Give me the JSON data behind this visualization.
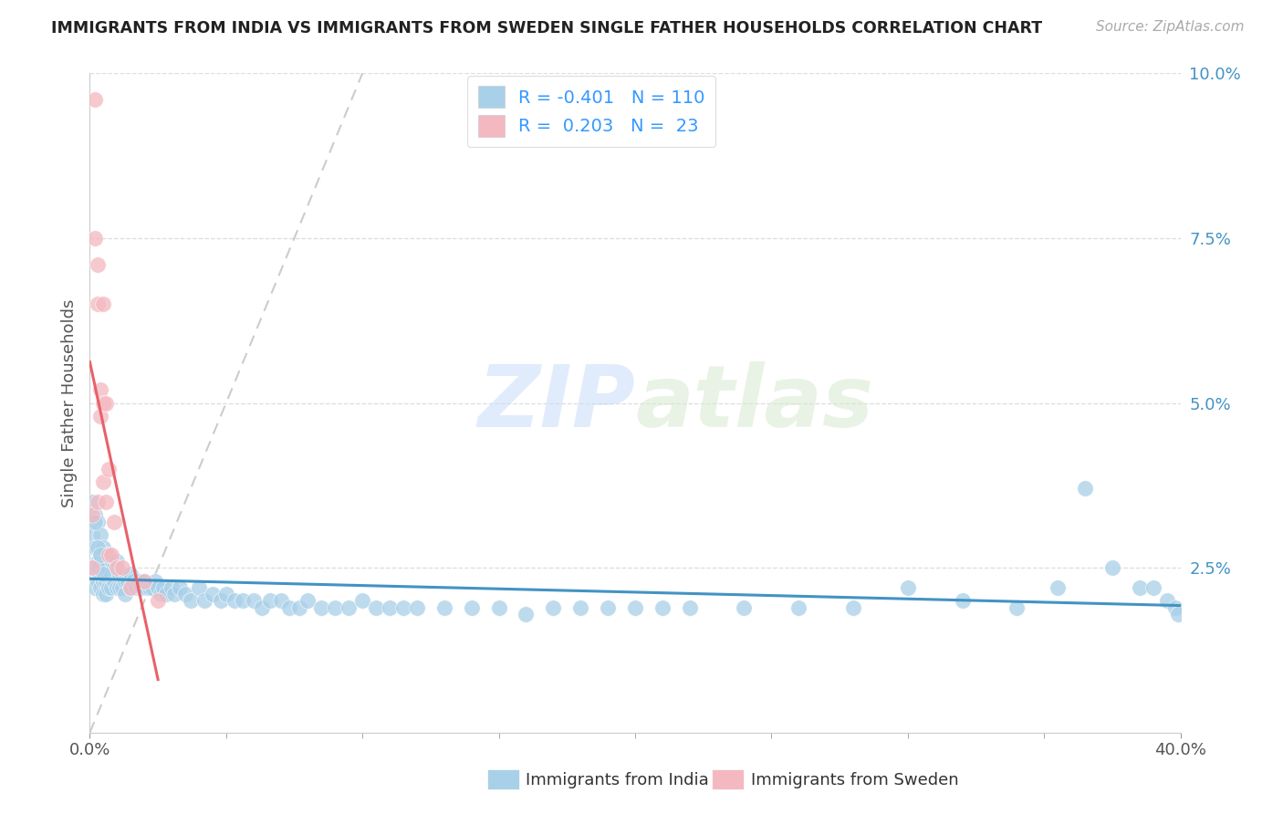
{
  "title": "IMMIGRANTS FROM INDIA VS IMMIGRANTS FROM SWEDEN SINGLE FATHER HOUSEHOLDS CORRELATION CHART",
  "source": "Source: ZipAtlas.com",
  "ylabel": "Single Father Households",
  "legend_india": "Immigrants from India",
  "legend_sweden": "Immigrants from Sweden",
  "india_R": "-0.401",
  "india_N": "110",
  "sweden_R": "0.203",
  "sweden_N": "23",
  "xlim": [
    0.0,
    0.4
  ],
  "ylim": [
    0.0,
    0.1
  ],
  "india_color": "#A8D0E8",
  "sweden_color": "#F4B8C0",
  "india_line_color": "#4393C3",
  "sweden_line_color": "#E8616A",
  "diagonal_color": "#CCCCCC",
  "watermark_zip": "ZIP",
  "watermark_atlas": "atlas",
  "india_x": [
    0.001,
    0.001,
    0.002,
    0.002,
    0.002,
    0.003,
    0.003,
    0.003,
    0.004,
    0.004,
    0.004,
    0.004,
    0.005,
    0.005,
    0.005,
    0.005,
    0.006,
    0.006,
    0.006,
    0.006,
    0.007,
    0.007,
    0.007,
    0.008,
    0.008,
    0.008,
    0.009,
    0.009,
    0.01,
    0.01,
    0.01,
    0.011,
    0.011,
    0.012,
    0.012,
    0.013,
    0.013,
    0.014,
    0.015,
    0.015,
    0.016,
    0.017,
    0.018,
    0.019,
    0.02,
    0.021,
    0.022,
    0.023,
    0.024,
    0.025,
    0.026,
    0.027,
    0.028,
    0.03,
    0.031,
    0.033,
    0.035,
    0.037,
    0.04,
    0.042,
    0.045,
    0.048,
    0.05,
    0.053,
    0.056,
    0.06,
    0.063,
    0.066,
    0.07,
    0.073,
    0.077,
    0.08,
    0.085,
    0.09,
    0.095,
    0.1,
    0.105,
    0.11,
    0.115,
    0.12,
    0.13,
    0.14,
    0.15,
    0.16,
    0.17,
    0.18,
    0.19,
    0.2,
    0.21,
    0.22,
    0.24,
    0.26,
    0.28,
    0.3,
    0.32,
    0.34,
    0.355,
    0.365,
    0.375,
    0.385,
    0.39,
    0.395,
    0.398,
    0.399,
    0.001,
    0.002,
    0.003,
    0.003,
    0.004,
    0.005
  ],
  "india_y": [
    0.03,
    0.025,
    0.033,
    0.028,
    0.022,
    0.032,
    0.026,
    0.023,
    0.03,
    0.027,
    0.024,
    0.022,
    0.028,
    0.025,
    0.023,
    0.021,
    0.027,
    0.025,
    0.023,
    0.021,
    0.026,
    0.024,
    0.022,
    0.026,
    0.024,
    0.022,
    0.025,
    0.023,
    0.026,
    0.024,
    0.022,
    0.024,
    0.022,
    0.024,
    0.022,
    0.023,
    0.021,
    0.023,
    0.024,
    0.022,
    0.023,
    0.022,
    0.023,
    0.022,
    0.023,
    0.022,
    0.022,
    0.022,
    0.023,
    0.022,
    0.021,
    0.022,
    0.021,
    0.022,
    0.021,
    0.022,
    0.021,
    0.02,
    0.022,
    0.02,
    0.021,
    0.02,
    0.021,
    0.02,
    0.02,
    0.02,
    0.019,
    0.02,
    0.02,
    0.019,
    0.019,
    0.02,
    0.019,
    0.019,
    0.019,
    0.02,
    0.019,
    0.019,
    0.019,
    0.019,
    0.019,
    0.019,
    0.019,
    0.018,
    0.019,
    0.019,
    0.019,
    0.019,
    0.019,
    0.019,
    0.019,
    0.019,
    0.019,
    0.022,
    0.02,
    0.019,
    0.022,
    0.037,
    0.025,
    0.022,
    0.022,
    0.02,
    0.019,
    0.018,
    0.035,
    0.032,
    0.028,
    0.025,
    0.027,
    0.024
  ],
  "sweden_x": [
    0.001,
    0.001,
    0.002,
    0.002,
    0.003,
    0.003,
    0.003,
    0.004,
    0.004,
    0.005,
    0.005,
    0.005,
    0.006,
    0.006,
    0.007,
    0.007,
    0.008,
    0.009,
    0.01,
    0.012,
    0.015,
    0.02,
    0.025
  ],
  "sweden_y": [
    0.025,
    0.033,
    0.096,
    0.075,
    0.071,
    0.065,
    0.035,
    0.052,
    0.048,
    0.065,
    0.05,
    0.038,
    0.05,
    0.035,
    0.04,
    0.027,
    0.027,
    0.032,
    0.025,
    0.025,
    0.022,
    0.023,
    0.02
  ]
}
